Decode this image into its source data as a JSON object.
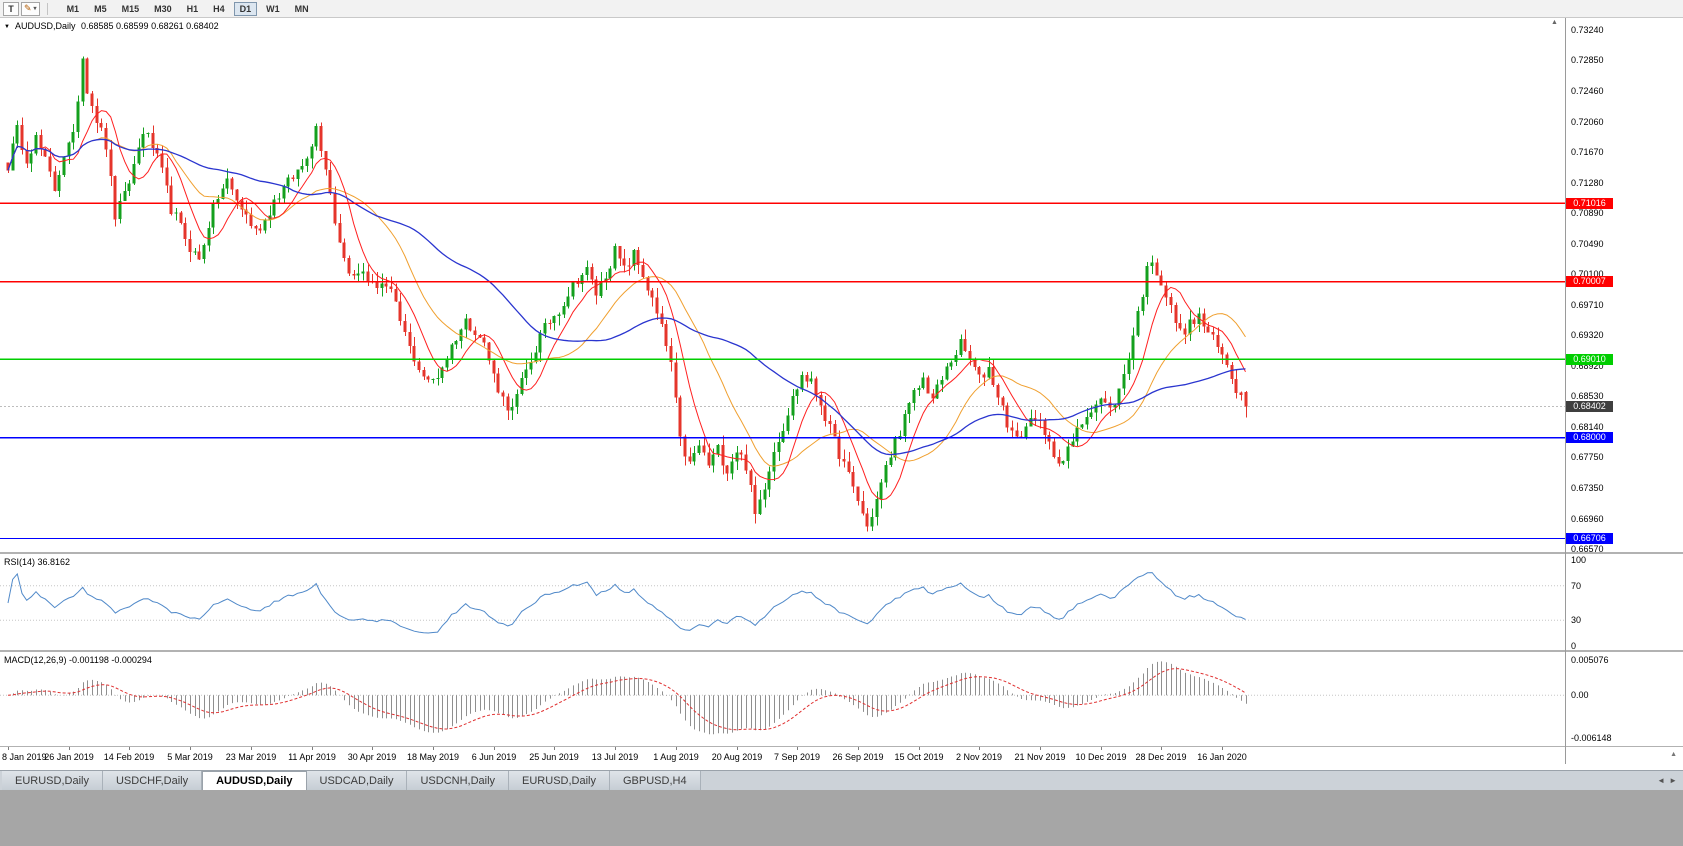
{
  "toolbar": {
    "chart_tool_label": "T",
    "timeframes": [
      "M1",
      "M5",
      "M15",
      "M30",
      "H1",
      "H4",
      "D1",
      "W1",
      "MN"
    ],
    "active_timeframe": "D1"
  },
  "icons": {
    "draw_tool": "✎",
    "dropdown_caret": "▾",
    "header_marker": "▼",
    "tab_scroll_left": "◄",
    "tab_scroll_right": "►",
    "scale_marker": "▲"
  },
  "main_chart": {
    "title": "AUDUSD,Daily",
    "ohlc": "0.68585 0.68599 0.68261 0.68402"
  },
  "rsi_panel": {
    "title": "RSI(14) 36.8162",
    "ticks": [
      "100",
      "70",
      "30",
      "0"
    ],
    "levels": [
      70,
      30
    ],
    "line_color": "#5089c9"
  },
  "macd_panel": {
    "title": "MACD(12,26,9) -0.001198 -0.000294",
    "ticks": [
      "0.005076",
      "0.00",
      "-0.006148"
    ],
    "hist_color": "#8f8f8f",
    "signal_color": "#e03131"
  },
  "tabs": [
    "EURUSD,Daily",
    "USDCHF,Daily",
    "AUDUSD,Daily",
    "USDCAD,Daily",
    "USDCNH,Daily",
    "EURUSD,Daily",
    "GBPUSD,H4"
  ],
  "active_tab_index": 2,
  "chart_data": {
    "type": "candlestick",
    "symbol": "AUDUSD",
    "period": "Daily",
    "current_bar": {
      "open": 0.68585,
      "high": 0.68599,
      "low": 0.68261,
      "close": 0.68402
    },
    "current_price": {
      "value": 0.68402,
      "label": "0.68402",
      "badge_color": "#3f3f3f"
    },
    "y_ticks": [
      0.7324,
      0.7285,
      0.7246,
      0.7206,
      0.7167,
      0.7128,
      0.7089,
      0.7049,
      0.701,
      0.6971,
      0.6932,
      0.6892,
      0.6853,
      0.6814,
      0.6775,
      0.6735,
      0.6696,
      0.6657
    ],
    "x_tick_labels": [
      "8 Jan 2019",
      "26 Jan 2019",
      "14 Feb 2019",
      "5 Mar 2019",
      "23 Mar 2019",
      "11 Apr 2019",
      "30 Apr 2019",
      "18 May 2019",
      "6 Jun 2019",
      "25 Jun 2019",
      "13 Jul 2019",
      "1 Aug 2019",
      "20 Aug 2019",
      "7 Sep 2019",
      "26 Sep 2019",
      "15 Oct 2019",
      "2 Nov 2019",
      "21 Nov 2019",
      "10 Dec 2019",
      "28 Dec 2019",
      "16 Jan 2020"
    ],
    "bars_per_x_tick": 13,
    "bar_count": 266,
    "up_color": "#14a01e",
    "down_color": "#e5352b",
    "ma_fast": {
      "period": 8,
      "color": "#ff2020"
    },
    "ma_mid": {
      "period": 20,
      "color": "#f0a030"
    },
    "ma_slow": {
      "period": 45,
      "color": "#2a35cf"
    },
    "hlines": [
      {
        "price": 0.71016,
        "label": "0.71016",
        "color": "#ff0000"
      },
      {
        "price": 0.70007,
        "label": "0.70007",
        "color": "#ff0000"
      },
      {
        "price": 0.6901,
        "label": "0.69010",
        "color": "#00ce00"
      },
      {
        "price": 0.68,
        "label": "0.68000",
        "color": "#0000ff"
      },
      {
        "price": 0.66706,
        "label": "0.66706",
        "color": "#0000ff"
      }
    ],
    "rsi_value": 36.8162,
    "macd_values": [
      -0.001198,
      -0.000294
    ],
    "close_waypoints": [
      [
        0,
        0.715
      ],
      [
        2,
        0.7195
      ],
      [
        4,
        0.716
      ],
      [
        6,
        0.7185
      ],
      [
        8,
        0.7155
      ],
      [
        10,
        0.712
      ],
      [
        12,
        0.7165
      ],
      [
        14,
        0.7185
      ],
      [
        16,
        0.729
      ],
      [
        17,
        0.725
      ],
      [
        19,
        0.721
      ],
      [
        21,
        0.7175
      ],
      [
        23,
        0.7085
      ],
      [
        25,
        0.711
      ],
      [
        27,
        0.715
      ],
      [
        29,
        0.7195
      ],
      [
        31,
        0.7175
      ],
      [
        33,
        0.714
      ],
      [
        35,
        0.7095
      ],
      [
        37,
        0.707
      ],
      [
        39,
        0.7045
      ],
      [
        41,
        0.7028
      ],
      [
        43,
        0.7075
      ],
      [
        45,
        0.711
      ],
      [
        47,
        0.713
      ],
      [
        49,
        0.7105
      ],
      [
        51,
        0.7085
      ],
      [
        53,
        0.7065
      ],
      [
        55,
        0.708
      ],
      [
        57,
        0.7105
      ],
      [
        59,
        0.712
      ],
      [
        61,
        0.7135
      ],
      [
        63,
        0.715
      ],
      [
        65,
        0.718
      ],
      [
        66,
        0.72
      ],
      [
        68,
        0.715
      ],
      [
        70,
        0.708
      ],
      [
        72,
        0.703
      ],
      [
        74,
        0.7005
      ],
      [
        76,
        0.7015
      ],
      [
        78,
        0.6995
      ],
      [
        80,
        0.7
      ],
      [
        82,
        0.6985
      ],
      [
        84,
        0.695
      ],
      [
        86,
        0.6915
      ],
      [
        88,
        0.689
      ],
      [
        90,
        0.687
      ],
      [
        92,
        0.688
      ],
      [
        94,
        0.6905
      ],
      [
        96,
        0.693
      ],
      [
        98,
        0.695
      ],
      [
        100,
        0.694
      ],
      [
        102,
        0.692
      ],
      [
        104,
        0.688
      ],
      [
        106,
        0.685
      ],
      [
        108,
        0.6835
      ],
      [
        110,
        0.687
      ],
      [
        112,
        0.69
      ],
      [
        114,
        0.693
      ],
      [
        116,
        0.695
      ],
      [
        118,
        0.6965
      ],
      [
        120,
        0.6985
      ],
      [
        122,
        0.7005
      ],
      [
        124,
        0.7015
      ],
      [
        126,
        0.6985
      ],
      [
        128,
        0.701
      ],
      [
        130,
        0.704
      ],
      [
        132,
        0.7015
      ],
      [
        134,
        0.7035
      ],
      [
        136,
        0.701
      ],
      [
        138,
        0.6975
      ],
      [
        140,
        0.694
      ],
      [
        142,
        0.6895
      ],
      [
        144,
        0.6795
      ],
      [
        146,
        0.6765
      ],
      [
        148,
        0.679
      ],
      [
        150,
        0.6765
      ],
      [
        152,
        0.6785
      ],
      [
        154,
        0.676
      ],
      [
        156,
        0.6785
      ],
      [
        158,
        0.6765
      ],
      [
        160,
        0.67
      ],
      [
        162,
        0.674
      ],
      [
        164,
        0.6785
      ],
      [
        166,
        0.6815
      ],
      [
        168,
        0.685
      ],
      [
        170,
        0.688
      ],
      [
        172,
        0.687
      ],
      [
        174,
        0.6845
      ],
      [
        176,
        0.681
      ],
      [
        178,
        0.678
      ],
      [
        180,
        0.675
      ],
      [
        182,
        0.672
      ],
      [
        184,
        0.6685
      ],
      [
        186,
        0.672
      ],
      [
        188,
        0.676
      ],
      [
        190,
        0.6795
      ],
      [
        192,
        0.6825
      ],
      [
        194,
        0.6855
      ],
      [
        196,
        0.6875
      ],
      [
        198,
        0.685
      ],
      [
        200,
        0.6875
      ],
      [
        202,
        0.69
      ],
      [
        204,
        0.692
      ],
      [
        206,
        0.69
      ],
      [
        208,
        0.6875
      ],
      [
        210,
        0.689
      ],
      [
        212,
        0.6855
      ],
      [
        214,
        0.682
      ],
      [
        216,
        0.6795
      ],
      [
        218,
        0.6815
      ],
      [
        220,
        0.683
      ],
      [
        222,
        0.68
      ],
      [
        224,
        0.678
      ],
      [
        226,
        0.677
      ],
      [
        228,
        0.6795
      ],
      [
        230,
        0.682
      ],
      [
        232,
        0.684
      ],
      [
        234,
        0.685
      ],
      [
        236,
        0.6835
      ],
      [
        238,
        0.686
      ],
      [
        240,
        0.6905
      ],
      [
        242,
        0.696
      ],
      [
        244,
        0.7015
      ],
      [
        245,
        0.703
      ],
      [
        247,
        0.7
      ],
      [
        249,
        0.6965
      ],
      [
        251,
        0.6935
      ],
      [
        253,
        0.6945
      ],
      [
        255,
        0.6955
      ],
      [
        257,
        0.6935
      ],
      [
        259,
        0.6915
      ],
      [
        261,
        0.6895
      ],
      [
        263,
        0.6865
      ],
      [
        265,
        0.684
      ]
    ]
  }
}
